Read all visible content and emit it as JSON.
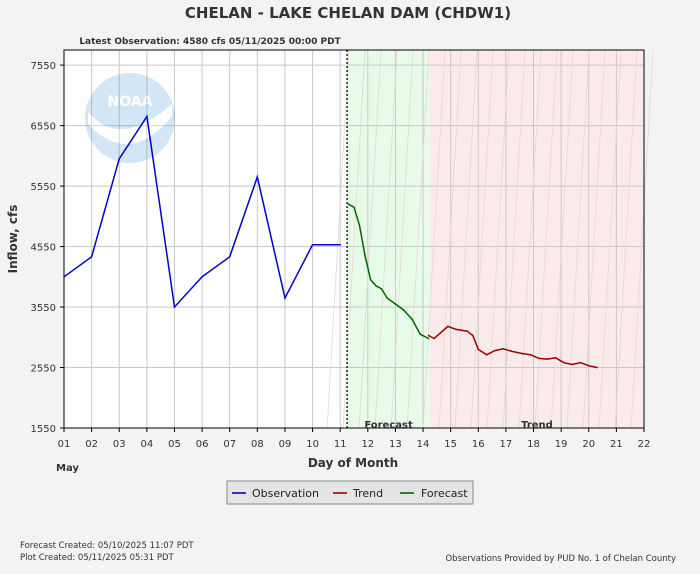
{
  "chart_data": {
    "type": "line",
    "title": "CHELAN - LAKE CHELAN DAM  (CHDW1)",
    "subtitle": "Latest Observation: 4580 cfs 05/11/2025 00:00 PDT",
    "xlabel": "Day of Month",
    "x_month_label": "May",
    "ylabel": "Inflow, cfs",
    "xlim": [
      1,
      22
    ],
    "ylim": [
      1550,
      7800
    ],
    "x_ticks": [
      "01",
      "02",
      "03",
      "04",
      "05",
      "06",
      "07",
      "08",
      "09",
      "10",
      "11",
      "12",
      "13",
      "14",
      "15",
      "16",
      "17",
      "18",
      "19",
      "20",
      "21",
      "22"
    ],
    "y_ticks": [
      1550,
      2550,
      3550,
      4550,
      5550,
      6550,
      7550
    ],
    "grid": true,
    "legend_position": "bottom-center",
    "regions": [
      {
        "label": "Forecast",
        "from": 11.25,
        "to": 14.25,
        "color": "#e8fbe8"
      },
      {
        "label": "Trend",
        "from": 14.25,
        "to": 22,
        "color": "#fbeaea"
      }
    ],
    "latest_observation_x": 11.25,
    "series": [
      {
        "name": "Observation",
        "color": "#0000cc",
        "points": [
          [
            1,
            4050
          ],
          [
            2,
            4380
          ],
          [
            3,
            6000
          ],
          [
            4,
            6700
          ],
          [
            5,
            3550
          ],
          [
            6,
            4050
          ],
          [
            7,
            4380
          ],
          [
            8,
            5700
          ],
          [
            9,
            3700
          ],
          [
            10,
            4580
          ],
          [
            11.0,
            4580
          ]
        ]
      },
      {
        "name": "Trend",
        "color": "#990000",
        "points": [
          [
            14.2,
            3080
          ],
          [
            14.4,
            3030
          ],
          [
            14.7,
            3150
          ],
          [
            14.9,
            3230
          ],
          [
            15.2,
            3180
          ],
          [
            15.6,
            3150
          ],
          [
            15.8,
            3080
          ],
          [
            16.0,
            2850
          ],
          [
            16.3,
            2760
          ],
          [
            16.6,
            2830
          ],
          [
            16.9,
            2860
          ],
          [
            17.2,
            2820
          ],
          [
            17.6,
            2780
          ],
          [
            17.9,
            2760
          ],
          [
            18.2,
            2700
          ],
          [
            18.5,
            2690
          ],
          [
            18.8,
            2710
          ],
          [
            19.1,
            2630
          ],
          [
            19.4,
            2600
          ],
          [
            19.7,
            2630
          ],
          [
            20.0,
            2580
          ],
          [
            20.3,
            2550
          ]
        ]
      },
      {
        "name": "Forecast",
        "color": "#006600",
        "points": [
          [
            11.3,
            5250
          ],
          [
            11.5,
            5200
          ],
          [
            11.7,
            4900
          ],
          [
            11.9,
            4400
          ],
          [
            12.1,
            4000
          ],
          [
            12.3,
            3900
          ],
          [
            12.5,
            3850
          ],
          [
            12.7,
            3700
          ],
          [
            13.0,
            3600
          ],
          [
            13.3,
            3500
          ],
          [
            13.6,
            3350
          ],
          [
            13.9,
            3100
          ],
          [
            14.2,
            3030
          ]
        ]
      }
    ]
  },
  "footer": {
    "forecast_created": "Forecast Created: 05/10/2025 11:07 PDT",
    "plot_created": "Plot Created: 05/11/2025 05:31 PDT",
    "credit": "Observations Provided by PUD No. 1 of Chelan County"
  },
  "logo_text": "NOAA",
  "colors": {
    "plot_bg": "#ffffff",
    "grid": "#c8c8c8",
    "page_bg": "#f3f3f3"
  }
}
